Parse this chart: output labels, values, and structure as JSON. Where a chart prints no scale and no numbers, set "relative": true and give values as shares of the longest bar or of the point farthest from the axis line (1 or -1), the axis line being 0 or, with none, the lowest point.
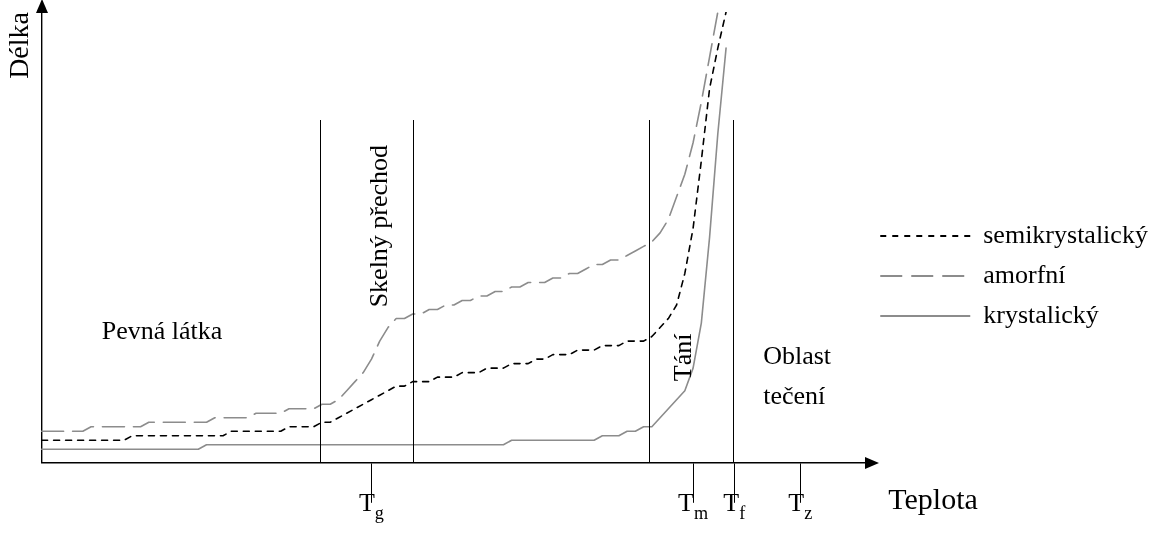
{
  "chart_data": {
    "type": "line",
    "relative": true,
    "xlabel": "Teplota",
    "ylabel": "Délka",
    "categories": [
      null,
      null,
      null,
      null,
      null,
      null,
      null,
      null,
      null,
      null,
      null,
      null,
      null,
      null,
      null,
      null,
      null,
      null,
      null,
      null,
      null,
      null,
      null,
      null,
      null,
      null,
      null,
      null,
      null,
      null,
      null,
      null,
      null,
      null,
      null,
      null,
      null,
      null,
      null,
      null,
      "T$_{g}$",
      null,
      null,
      null,
      null,
      null,
      null,
      null,
      null,
      null,
      null,
      null,
      null,
      null,
      null,
      null,
      null,
      null,
      null,
      null,
      null,
      null,
      null,
      null,
      null,
      null,
      null,
      null,
      null,
      null,
      null,
      null,
      null,
      null,
      null,
      null,
      null,
      null,
      null,
      "T$_{m}$",
      null,
      null,
      null,
      null,
      "T$_{f}$",
      null,
      null,
      null,
      null,
      null,
      null,
      null,
      "T$_{z}$",
      null,
      null,
      null,
      null,
      null,
      null,
      null,
      null
    ],
    "series": [
      {
        "name": "semikrystalický",
        "color": "#000000",
        "line_style": "dotted",
        "values": [
          0.05,
          0.05,
          0.05,
          0.05,
          0.05,
          0.05,
          0.05,
          0.05,
          0.05,
          0.05,
          0.05,
          0.06,
          0.06,
          0.06,
          0.06,
          0.06,
          0.06,
          0.06,
          0.06,
          0.06,
          0.06,
          0.06,
          0.06,
          0.07,
          0.07,
          0.07,
          0.07,
          0.07,
          0.07,
          0.07,
          0.08,
          0.08,
          0.08,
          0.08,
          0.09,
          0.09,
          0.1,
          0.11,
          0.12,
          0.13,
          0.14,
          0.15,
          0.16,
          0.17,
          0.17,
          0.18,
          0.18,
          0.18,
          0.19,
          0.19,
          0.19,
          0.2,
          0.2,
          0.2,
          0.21,
          0.21,
          0.21,
          0.22,
          0.22,
          0.22,
          0.23,
          0.23,
          0.24,
          0.24,
          0.24,
          0.25,
          0.25,
          0.25,
          0.26,
          0.26,
          0.26,
          0.27,
          0.27,
          0.27,
          0.28,
          0.3,
          0.32,
          0.35,
          0.42,
          0.52,
          0.67,
          0.83,
          0.92,
          1.0,
          null,
          null,
          null,
          null,
          null,
          null,
          null,
          null,
          null,
          null,
          null,
          null,
          null,
          null,
          null,
          null,
          null
        ]
      },
      {
        "name": "amorfní",
        "color": "#8c8c8c",
        "line_style": "dashed",
        "values": [
          0.07,
          0.07,
          0.07,
          0.07,
          0.07,
          0.07,
          0.08,
          0.08,
          0.08,
          0.08,
          0.08,
          0.08,
          0.08,
          0.09,
          0.09,
          0.09,
          0.09,
          0.09,
          0.09,
          0.09,
          0.09,
          0.1,
          0.1,
          0.1,
          0.1,
          0.1,
          0.11,
          0.11,
          0.11,
          0.11,
          0.12,
          0.12,
          0.12,
          0.12,
          0.13,
          0.13,
          0.14,
          0.16,
          0.18,
          0.2,
          0.23,
          0.27,
          0.3,
          0.32,
          0.32,
          0.33,
          0.33,
          0.34,
          0.34,
          0.35,
          0.35,
          0.36,
          0.36,
          0.37,
          0.37,
          0.38,
          0.38,
          0.39,
          0.39,
          0.4,
          0.4,
          0.4,
          0.41,
          0.41,
          0.42,
          0.42,
          0.43,
          0.44,
          0.44,
          0.45,
          0.45,
          0.46,
          0.47,
          0.48,
          0.49,
          0.51,
          0.54,
          0.59,
          0.64,
          0.71,
          0.8,
          0.9,
          1.0,
          null,
          null,
          null,
          null,
          null,
          null,
          null,
          null,
          null,
          null,
          null,
          null,
          null,
          null,
          null,
          null,
          null,
          null
        ]
      },
      {
        "name": "krystalický",
        "color": "#8c8c8c",
        "line_style": "solid",
        "values": [
          0.03,
          0.03,
          0.03,
          0.03,
          0.03,
          0.03,
          0.03,
          0.03,
          0.03,
          0.03,
          0.03,
          0.03,
          0.03,
          0.03,
          0.03,
          0.03,
          0.03,
          0.03,
          0.03,
          0.03,
          0.04,
          0.04,
          0.04,
          0.04,
          0.04,
          0.04,
          0.04,
          0.04,
          0.04,
          0.04,
          0.04,
          0.04,
          0.04,
          0.04,
          0.04,
          0.04,
          0.04,
          0.04,
          0.04,
          0.04,
          0.04,
          0.04,
          0.04,
          0.04,
          0.04,
          0.04,
          0.04,
          0.04,
          0.04,
          0.04,
          0.04,
          0.04,
          0.04,
          0.04,
          0.04,
          0.04,
          0.04,
          0.05,
          0.05,
          0.05,
          0.05,
          0.05,
          0.05,
          0.05,
          0.05,
          0.05,
          0.05,
          0.05,
          0.06,
          0.06,
          0.06,
          0.07,
          0.07,
          0.08,
          0.08,
          0.1,
          0.12,
          0.14,
          0.16,
          0.21,
          0.31,
          0.5,
          0.73,
          0.92,
          null,
          null,
          null,
          null,
          null,
          null,
          null,
          null,
          null,
          null,
          null,
          null,
          null,
          null,
          null,
          null,
          null
        ]
      }
    ],
    "annotations": [
      "Pevná látka",
      "Skelný přechod",
      "Tání",
      "Oblast tečení"
    ],
    "marker": "none",
    "grid": false,
    "legend": "right"
  }
}
